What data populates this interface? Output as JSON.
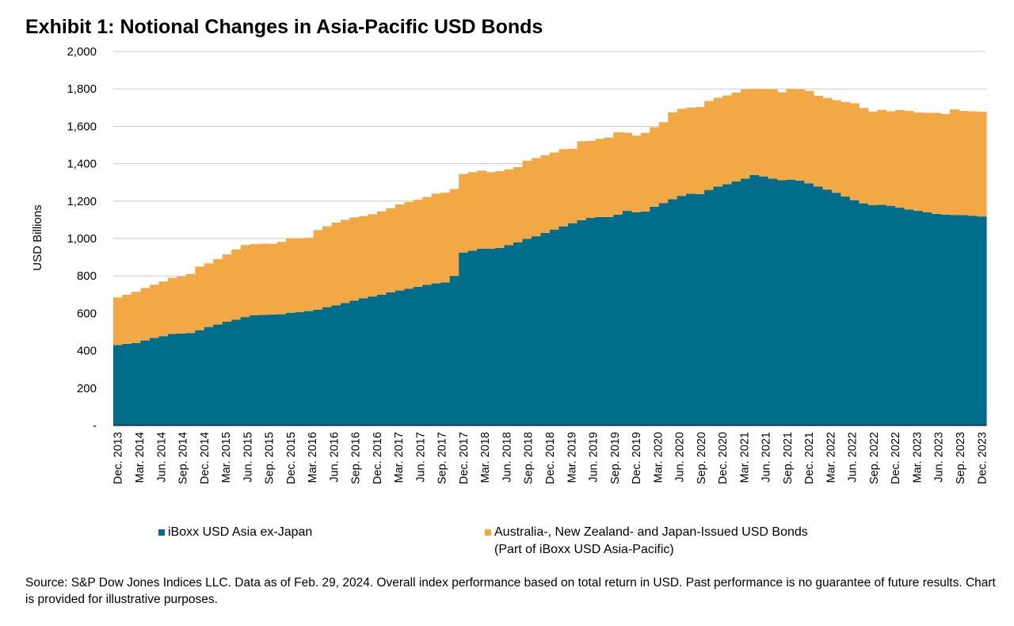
{
  "title": "Exhibit 1: Notional Changes in Asia-Pacific USD Bonds",
  "source_note": "Source: S&P Dow Jones Indices LLC.  Data as of Feb. 29, 2024.  Overall index performance based on total return in USD.  Past performance is no guarantee of future results.  Chart is provided for illustrative purposes.",
  "chart_data": {
    "type": "area",
    "stacked": true,
    "ylabel": "USD Billions",
    "ylim": [
      0,
      2000
    ],
    "yticks": [
      0,
      200,
      400,
      600,
      800,
      1000,
      1200,
      1400,
      1600,
      1800,
      2000
    ],
    "ytick_labels": [
      "-",
      "200",
      "400",
      "600",
      "800",
      "1,000",
      "1,200",
      "1,400",
      "1,600",
      "1,800",
      "2,000"
    ],
    "x_tick_labels": [
      "Dec. 2013",
      "Mar. 2014",
      "Jun. 2014",
      "Sep. 2014",
      "Dec. 2014",
      "Mar. 2015",
      "Jun. 2015",
      "Sep. 2015",
      "Dec. 2015",
      "Mar. 2016",
      "Jun. 2016",
      "Sep. 2016",
      "Dec. 2016",
      "Mar. 2017",
      "Jun. 2017",
      "Sep. 2017",
      "Dec. 2017",
      "Mar. 2018",
      "Jun. 2018",
      "Sep. 2018",
      "Dec. 2018",
      "Mar. 2019",
      "Jun. 2019",
      "Sep. 2019",
      "Dec. 2019",
      "Mar. 2020",
      "Jun. 2020",
      "Sep. 2020",
      "Dec. 2020",
      "Mar. 2021",
      "Jun. 2021",
      "Sep. 2021",
      "Dec. 2021",
      "Mar. 2022",
      "Jun. 2022",
      "Sep. 2022",
      "Dec. 2022",
      "Mar. 2023",
      "Jun. 2023",
      "Sep. 2023",
      "Dec. 2023"
    ],
    "grid": "horizontal",
    "legend_position": "bottom",
    "series": [
      {
        "name": "iBoxx USD Asia ex-Japan",
        "color": "#006D8A",
        "values": [
          430,
          437,
          442,
          455,
          468,
          478,
          490,
          492,
          495,
          510,
          527,
          540,
          555,
          566,
          580,
          590,
          592,
          593,
          595,
          603,
          607,
          612,
          620,
          633,
          643,
          655,
          668,
          680,
          690,
          700,
          712,
          722,
          732,
          742,
          752,
          760,
          765,
          800,
          925,
          935,
          945,
          945,
          950,
          965,
          980,
          998,
          1012,
          1030,
          1048,
          1065,
          1082,
          1098,
          1110,
          1115,
          1115,
          1128,
          1148,
          1140,
          1145,
          1170,
          1190,
          1210,
          1228,
          1240,
          1238,
          1260,
          1278,
          1290,
          1305,
          1320,
          1340,
          1332,
          1320,
          1312,
          1315,
          1310,
          1295,
          1278,
          1262,
          1245,
          1225,
          1205,
          1188,
          1178,
          1180,
          1175,
          1165,
          1155,
          1148,
          1140,
          1132,
          1128,
          1125,
          1125,
          1122,
          1118
        ]
      },
      {
        "name": "Australia-, New Zealand- and Japan-Issued USD Bonds (Part of iBoxx USD Asia-Pacific)",
        "color": "#F2A945",
        "values": [
          255,
          263,
          273,
          280,
          285,
          292,
          300,
          305,
          315,
          340,
          340,
          350,
          360,
          375,
          385,
          380,
          380,
          378,
          387,
          398,
          395,
          392,
          425,
          432,
          442,
          445,
          445,
          440,
          440,
          445,
          450,
          460,
          463,
          465,
          470,
          480,
          480,
          465,
          420,
          420,
          418,
          410,
          410,
          405,
          402,
          418,
          418,
          415,
          412,
          413,
          398,
          422,
          412,
          418,
          425,
          440,
          418,
          410,
          420,
          425,
          432,
          465,
          465,
          460,
          465,
          475,
          475,
          475,
          475,
          478,
          460,
          468,
          478,
          470,
          485,
          488,
          495,
          485,
          490,
          495,
          505,
          518,
          510,
          500,
          508,
          505,
          522,
          527,
          525,
          532,
          540,
          538,
          565,
          557,
          558,
          560
        ]
      }
    ]
  },
  "legend": [
    {
      "label": "iBoxx USD Asia ex-Japan",
      "color": "#006D8A"
    },
    {
      "label": "Australia-, New Zealand- and Japan-Issued USD Bonds",
      "label_line2": "(Part of iBoxx USD Asia-Pacific)",
      "color": "#F2A945"
    }
  ]
}
